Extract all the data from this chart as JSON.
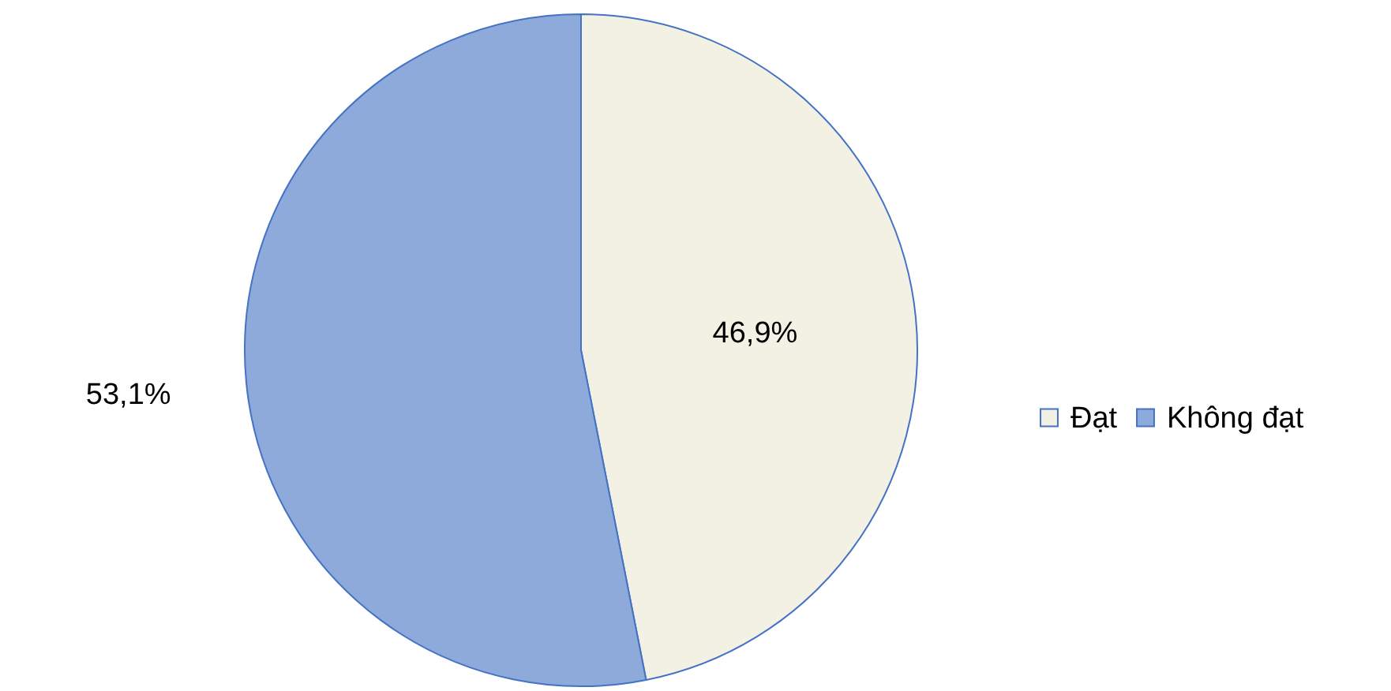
{
  "chart_data": {
    "type": "pie",
    "categories": [
      "Đạt",
      "Không đạt"
    ],
    "values": [
      46.9,
      53.1
    ],
    "colors": [
      "#f3f1e4",
      "#8eaadb"
    ],
    "value_labels": [
      "46,9%",
      "53,1%"
    ],
    "legend": "right"
  }
}
